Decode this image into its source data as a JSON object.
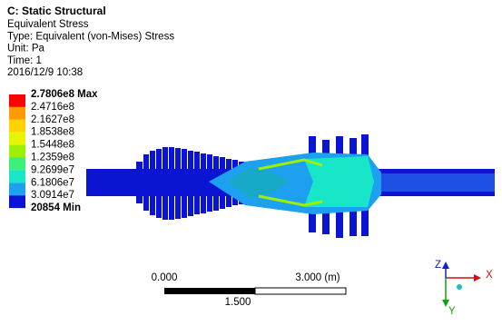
{
  "header": {
    "title": "C: Static Structural",
    "lines": [
      "Equivalent Stress",
      "Type: Equivalent (von-Mises) Stress",
      "Unit: Pa",
      "Time: 1",
      "2016/12/9 10:38"
    ]
  },
  "legend": {
    "labels": [
      "2.7806e8 Max",
      "2.4716e8",
      "2.1627e8",
      "1.8538e8",
      "1.5448e8",
      "1.2359e8",
      "9.2699e7",
      "6.1806e7",
      "3.0914e7",
      "20854 Min"
    ],
    "colors": [
      "#ff0000",
      "#ff9a00",
      "#ffd200",
      "#e6f500",
      "#9cf000",
      "#3cf07a",
      "#18e6c8",
      "#1ea0f0",
      "#0a14d2"
    ]
  },
  "scale_bar": {
    "start": "0.000",
    "end": "3.000 (m)",
    "middle": "1.500"
  },
  "triad": {
    "x": "X",
    "y": "Y",
    "z": "Z"
  }
}
